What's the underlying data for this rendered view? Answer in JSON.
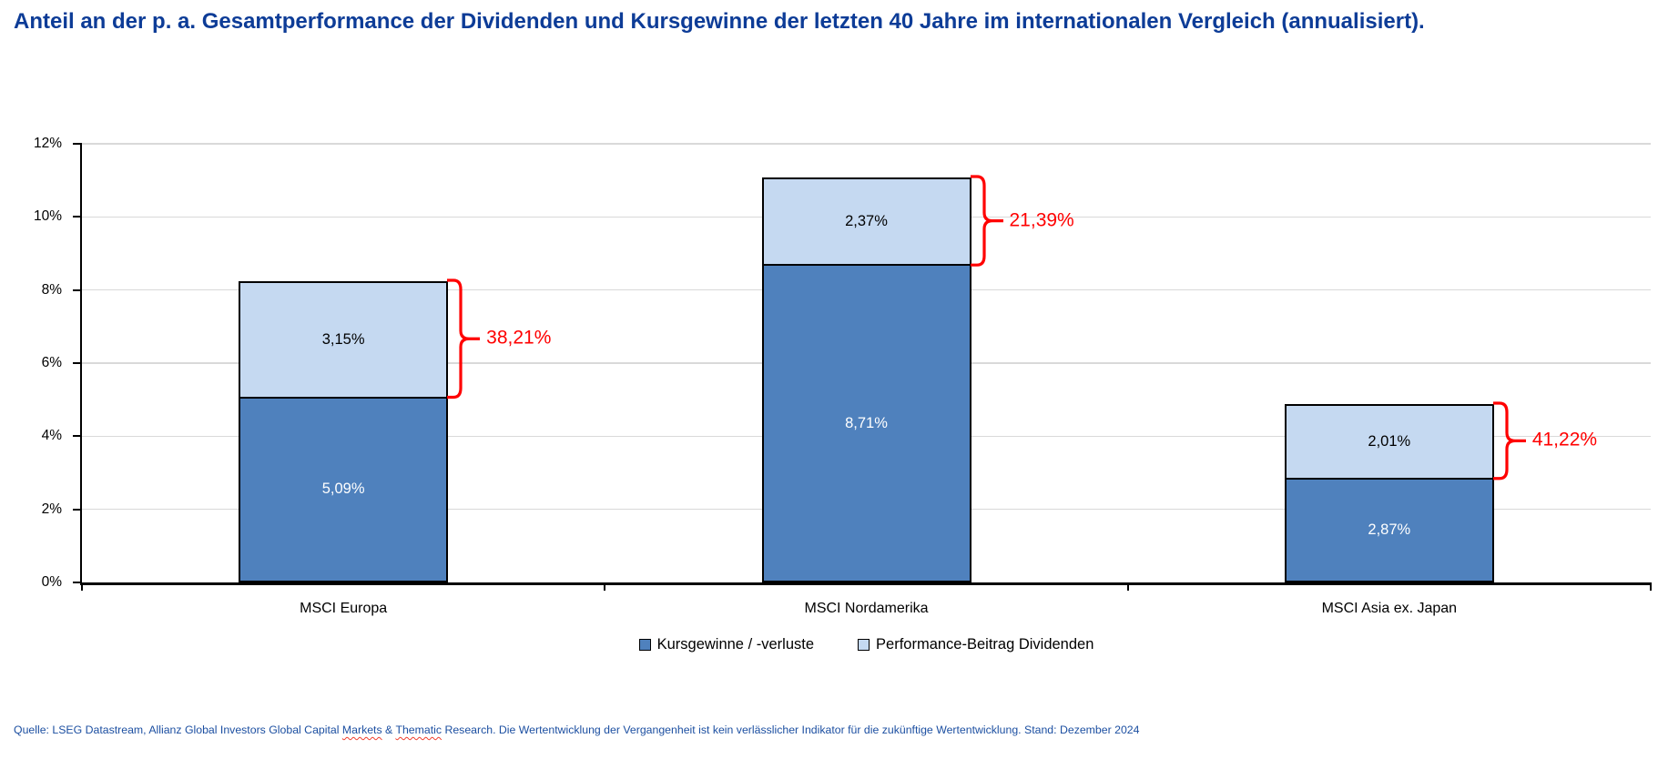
{
  "title": "Anteil an der p. a. Gesamtperformance der Dividenden und Kursgewinne der letzten 40 Jahre im internationalen Vergleich (annualisiert).",
  "chart_data": {
    "type": "bar",
    "stacked": true,
    "title": "Anteil an der p. a. Gesamtperformance der Dividenden und Kursgewinne der letzten 40 Jahre im internationalen Vergleich (annualisiert).",
    "categories": [
      "MSCI Europa",
      "MSCI Nordamerika",
      "MSCI Asia ex. Japan"
    ],
    "series": [
      {
        "name": "Kursgewinne / -verluste",
        "values": [
          5.09,
          8.71,
          2.87
        ],
        "value_labels": [
          "5,09%",
          "8,71%",
          "2,87%"
        ],
        "color": "#4F81BD",
        "label_color": "#FFFFFF"
      },
      {
        "name": "Performance-Beitrag Dividenden",
        "values": [
          3.15,
          2.37,
          2.01
        ],
        "value_labels": [
          "3,15%",
          "2,37%",
          "2,01%"
        ],
        "color": "#C5D9F1",
        "label_color": "#000000"
      }
    ],
    "annotations": {
      "description": "Anteil der Dividenden an der Gesamtperformance",
      "labels": [
        "38,21%",
        "21,39%",
        "41,22%"
      ],
      "color": "#FF0000"
    },
    "xlabel": "",
    "ylabel": "",
    "ylim": [
      0,
      12
    ],
    "yticks": [
      {
        "value": 0,
        "label": "0%"
      },
      {
        "value": 2,
        "label": "2%"
      },
      {
        "value": 4,
        "label": "4%"
      },
      {
        "value": 6,
        "label": "6%"
      },
      {
        "value": 8,
        "label": "8%"
      },
      {
        "value": 10,
        "label": "10%"
      },
      {
        "value": 12,
        "label": "12%"
      }
    ],
    "grid": true,
    "legend_position": "bottom"
  },
  "source": {
    "part1": "Quelle: LSEG Datastream, Allianz Global Investors Global Capital ",
    "word1": "Markets",
    "part2": " & ",
    "word2": "Thematic",
    "part3": " Research. Die Wertentwicklung der Vergangenheit ist kein verlässlicher Indikator für die zukünftige Wertentwicklung. Stand: Dezember 2024"
  },
  "colors": {
    "title_text": "#0D3C97",
    "source_text": "#1C4FA1",
    "bar_dark": "#4F81BD",
    "bar_light": "#C5D9F1",
    "bar_border": "#000000",
    "annotation_red": "#FF0000",
    "gridline": "#D9D9D9",
    "axis": "#000000"
  }
}
